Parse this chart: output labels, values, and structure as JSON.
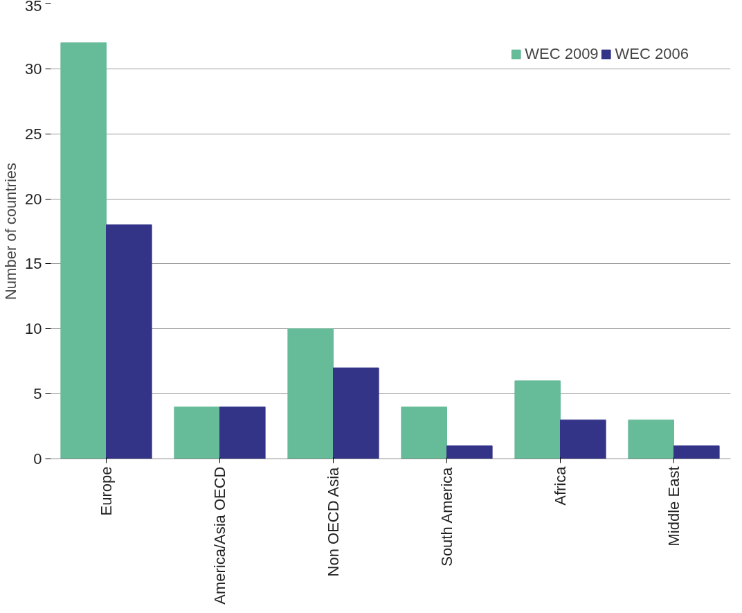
{
  "chart_data": {
    "type": "bar",
    "ylabel": "Number of countries",
    "categories": [
      "Europe",
      "America/Asia OECD",
      "Non OECD Asia",
      "South America",
      "Africa",
      "Middle East"
    ],
    "series": [
      {
        "name": "WEC 2009",
        "color": "#66bb99",
        "values": [
          32,
          4,
          10,
          4,
          6,
          3
        ]
      },
      {
        "name": "WEC 2006",
        "color": "#333388",
        "values": [
          18,
          4,
          7,
          1,
          3,
          1
        ]
      }
    ],
    "ylim": [
      0,
      35
    ],
    "yticks": [
      0,
      5,
      10,
      15,
      20,
      25,
      30,
      35
    ],
    "grid": "y",
    "legend": "top right"
  }
}
